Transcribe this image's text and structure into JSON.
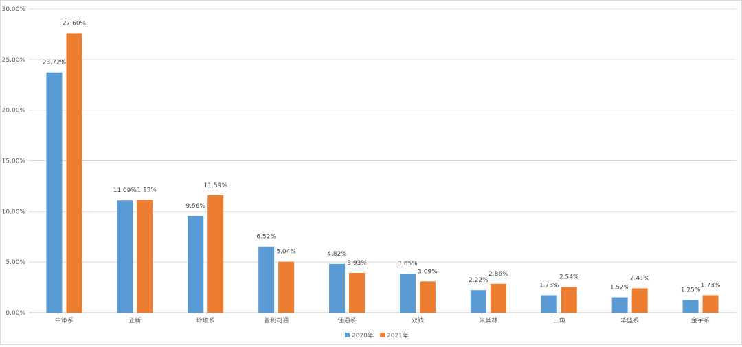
{
  "chart_data": {
    "type": "bar",
    "title": "",
    "xlabel": "",
    "ylabel": "",
    "ylim": [
      0,
      30
    ],
    "y_ticks": [
      "0.00%",
      "5.00%",
      "10.00%",
      "15.00%",
      "20.00%",
      "25.00%",
      "30.00%"
    ],
    "grid": true,
    "legend_position": "bottom",
    "categories": [
      "中策系",
      "正新",
      "玲珑系",
      "普利司通",
      "佳通系",
      "双钱",
      "米其林",
      "三角",
      "华盛系",
      "金宇系"
    ],
    "series": [
      {
        "name": "2020年",
        "color": "#5b9bd5",
        "values": [
          23.72,
          11.09,
          9.56,
          6.52,
          4.82,
          3.85,
          2.22,
          1.73,
          1.52,
          1.25
        ],
        "labels": [
          "23.72%",
          "11.09%",
          "9.56%",
          "6.52%",
          "4.82%",
          "3.85%",
          "2.22%",
          "1.73%",
          "1.52%",
          "1.25%"
        ]
      },
      {
        "name": "2021年",
        "color": "#ed7d31",
        "values": [
          27.6,
          11.15,
          11.59,
          5.04,
          3.93,
          3.09,
          2.86,
          2.54,
          2.41,
          1.73
        ],
        "labels": [
          "27.60%",
          "11.15%",
          "11.59%",
          "5.04%",
          "3.93%",
          "3.09%",
          "2.86%",
          "2.54%",
          "2.41%",
          "1.73%"
        ]
      }
    ]
  }
}
